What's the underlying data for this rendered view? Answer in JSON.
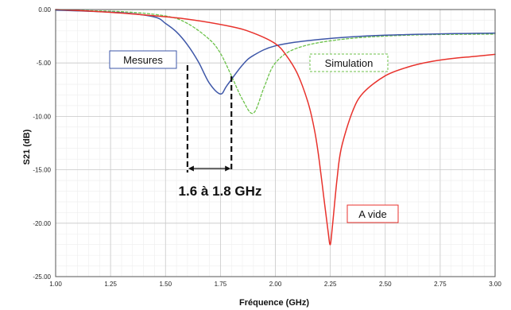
{
  "chart_data": {
    "type": "line",
    "title": "",
    "xlabel": "Fréquence (GHz)",
    "ylabel": "S21 (dB)",
    "xlim": [
      1.0,
      3.0
    ],
    "ylim": [
      -25.0,
      0.0
    ],
    "x_ticks": [
      "1.00",
      "1.25",
      "1.50",
      "1.75",
      "2.00",
      "2.25",
      "2.50",
      "2.75",
      "3.00"
    ],
    "y_ticks": [
      "0.00",
      "-5.00",
      "-10.00",
      "-15.00",
      "-20.00",
      "-25.00"
    ],
    "grid": true,
    "minor_grid": true,
    "series": [
      {
        "name": "A vide",
        "color": "#e8322c",
        "style": "solid",
        "x": [
          1.0,
          1.2,
          1.4,
          1.6,
          1.8,
          1.9,
          2.0,
          2.05,
          2.1,
          2.15,
          2.18,
          2.2,
          2.22,
          2.24,
          2.25,
          2.26,
          2.28,
          2.3,
          2.35,
          2.4,
          2.5,
          2.6,
          2.7,
          2.8,
          2.9,
          3.0
        ],
        "y": [
          0.0,
          -0.2,
          -0.5,
          -0.9,
          -1.6,
          -2.2,
          -3.2,
          -4.3,
          -6.0,
          -8.8,
          -11.5,
          -14.2,
          -17.5,
          -20.8,
          -22.0,
          -20.2,
          -16.0,
          -13.0,
          -9.6,
          -7.8,
          -6.2,
          -5.4,
          -4.9,
          -4.6,
          -4.4,
          -4.2
        ]
      },
      {
        "group": "Mesures",
        "color": "#3e57a8",
        "style": "solid",
        "x": [
          1.0,
          1.3,
          1.45,
          1.5,
          1.55,
          1.6,
          1.65,
          1.7,
          1.75,
          1.78,
          1.85,
          1.9,
          2.0,
          2.2,
          2.5,
          3.0
        ],
        "y": [
          -0.05,
          -0.3,
          -0.7,
          -1.3,
          -2.1,
          -3.3,
          -4.9,
          -6.9,
          -7.9,
          -7.1,
          -5.2,
          -4.3,
          -3.4,
          -2.8,
          -2.4,
          -2.2
        ]
      },
      {
        "group": "Simulation",
        "color": "#6cc24a",
        "style": "dashed",
        "x": [
          1.0,
          1.3,
          1.5,
          1.6,
          1.7,
          1.75,
          1.8,
          1.85,
          1.9,
          1.95,
          2.0,
          2.1,
          2.3,
          2.6,
          3.0
        ],
        "y": [
          -0.05,
          -0.2,
          -0.6,
          -1.3,
          -2.8,
          -4.1,
          -6.2,
          -8.4,
          -9.7,
          -7.2,
          -5.0,
          -3.6,
          -2.8,
          -2.4,
          -2.3
        ]
      }
    ],
    "annotations": {
      "measures_label": "Mesures",
      "simulation_label": "Simulation",
      "empty_label": "A vide",
      "range_label": "1.6 à 1.8 GHz",
      "range_x": [
        1.6,
        1.8
      ]
    }
  }
}
